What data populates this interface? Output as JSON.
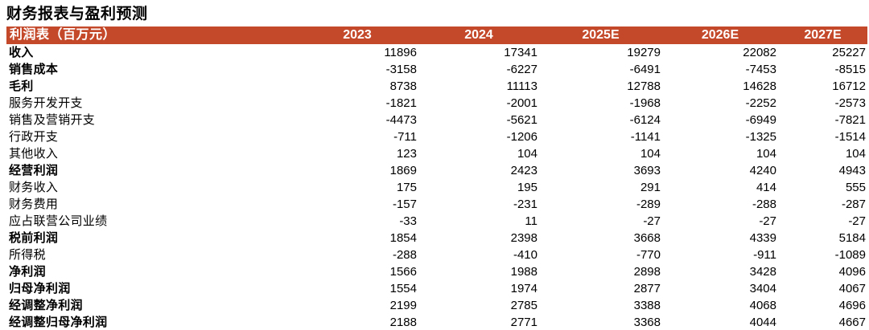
{
  "title": "财务报表与盈利预测",
  "colors": {
    "header_bg": "#C4492B",
    "header_text": "#FFFFFF",
    "body_text": "#000000"
  },
  "table": {
    "header": {
      "label": "利润表（百万元）",
      "years": [
        "2023",
        "2024",
        "2025E",
        "2026E",
        "2027E"
      ]
    },
    "rows": [
      {
        "label": "收入",
        "bold": true,
        "values": [
          "11896",
          "17341",
          "19279",
          "22082",
          "25227"
        ]
      },
      {
        "label": "销售成本",
        "bold": true,
        "values": [
          "-3158",
          "-6227",
          "-6491",
          "-7453",
          "-8515"
        ]
      },
      {
        "label": "毛利",
        "bold": true,
        "values": [
          "8738",
          "11113",
          "12788",
          "14628",
          "16712"
        ]
      },
      {
        "label": "服务开发开支",
        "bold": false,
        "values": [
          "-1821",
          "-2001",
          "-1968",
          "-2252",
          "-2573"
        ]
      },
      {
        "label": "销售及营销开支",
        "bold": false,
        "values": [
          "-4473",
          "-5621",
          "-6124",
          "-6949",
          "-7821"
        ]
      },
      {
        "label": "行政开支",
        "bold": false,
        "values": [
          "-711",
          "-1206",
          "-1141",
          "-1325",
          "-1514"
        ]
      },
      {
        "label": "其他收入",
        "bold": false,
        "values": [
          "123",
          "104",
          "104",
          "104",
          "104"
        ]
      },
      {
        "label": "经营利润",
        "bold": true,
        "values": [
          "1869",
          "2423",
          "3693",
          "4240",
          "4943"
        ]
      },
      {
        "label": "财务收入",
        "bold": false,
        "values": [
          "175",
          "195",
          "291",
          "414",
          "555"
        ]
      },
      {
        "label": "财务费用",
        "bold": false,
        "values": [
          "-157",
          "-231",
          "-289",
          "-288",
          "-287"
        ]
      },
      {
        "label": "应占联营公司业绩",
        "bold": false,
        "values": [
          "-33",
          "11",
          "-27",
          "-27",
          "-27"
        ]
      },
      {
        "label": "税前利润",
        "bold": true,
        "values": [
          "1854",
          "2398",
          "3668",
          "4339",
          "5184"
        ]
      },
      {
        "label": "所得税",
        "bold": false,
        "values": [
          "-288",
          "-410",
          "-770",
          "-911",
          "-1089"
        ]
      },
      {
        "label": "净利润",
        "bold": true,
        "values": [
          "1566",
          "1988",
          "2898",
          "3428",
          "4096"
        ]
      },
      {
        "label": "归母净利润",
        "bold": true,
        "values": [
          "1554",
          "1974",
          "2877",
          "3404",
          "4067"
        ]
      },
      {
        "label": "经调整净利润",
        "bold": true,
        "values": [
          "2199",
          "2785",
          "3388",
          "4068",
          "4696"
        ]
      },
      {
        "label": "经调整归母净利润",
        "bold": true,
        "values": [
          "2188",
          "2771",
          "3368",
          "4044",
          "4667"
        ]
      }
    ]
  }
}
